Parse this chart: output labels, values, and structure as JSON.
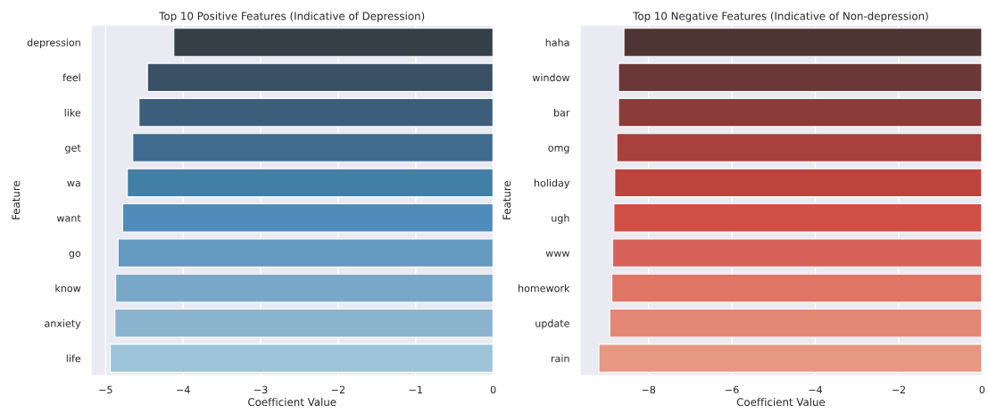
{
  "chart_data": [
    {
      "type": "bar",
      "orientation": "horizontal",
      "title": "Top 10 Positive Features (Indicative of Depression)",
      "xlabel": "Coefficient Value",
      "ylabel": "Feature",
      "categories": [
        "depression",
        "feel",
        "like",
        "get",
        "wa",
        "want",
        "go",
        "know",
        "anxiety",
        "life"
      ],
      "values": [
        -4.12,
        -4.46,
        -4.57,
        -4.65,
        -4.72,
        -4.78,
        -4.84,
        -4.87,
        -4.88,
        -4.94
      ],
      "colors": [
        "#343f47",
        "#3a5065",
        "#3d5e7b",
        "#3e6b8e",
        "#427fa6",
        "#4f8bbb",
        "#659ac0",
        "#79a7c8",
        "#8bb4cf",
        "#9dc3d9"
      ],
      "xlim": [
        -5.19,
        0
      ],
      "xticks": [
        {
          "value": -5,
          "label": "−5"
        },
        {
          "value": -4,
          "label": "−4"
        },
        {
          "value": -3,
          "label": "−3"
        },
        {
          "value": -2,
          "label": "−2"
        },
        {
          "value": -1,
          "label": "−1"
        },
        0
      ],
      "grid": "x",
      "legend": false
    },
    {
      "type": "bar",
      "orientation": "horizontal",
      "title": "Top 10 Negative Features (Indicative of Non-depression)",
      "xlabel": "Coefficient Value",
      "ylabel": "Feature",
      "categories": [
        "haha",
        "window",
        "bar",
        "omg",
        "holiday",
        "ugh",
        "www",
        "homework",
        "update",
        "rain"
      ],
      "values": [
        -8.59,
        -8.72,
        -8.72,
        -8.76,
        -8.81,
        -8.83,
        -8.86,
        -8.88,
        -8.93,
        -9.19
      ],
      "colors": [
        "#4f3434",
        "#6c3737",
        "#8a3b3a",
        "#a6413b",
        "#bd443d",
        "#cf4f45",
        "#d6625a",
        "#de7565",
        "#e38674",
        "#e69882"
      ],
      "xlim": [
        -9.65,
        0
      ],
      "xticks": [
        {
          "value": -8,
          "label": "−8"
        },
        {
          "value": -6,
          "label": "−6"
        },
        {
          "value": -4,
          "label": "−4"
        },
        {
          "value": -2,
          "label": "−2"
        },
        0
      ],
      "grid": "x",
      "legend": false
    }
  ]
}
